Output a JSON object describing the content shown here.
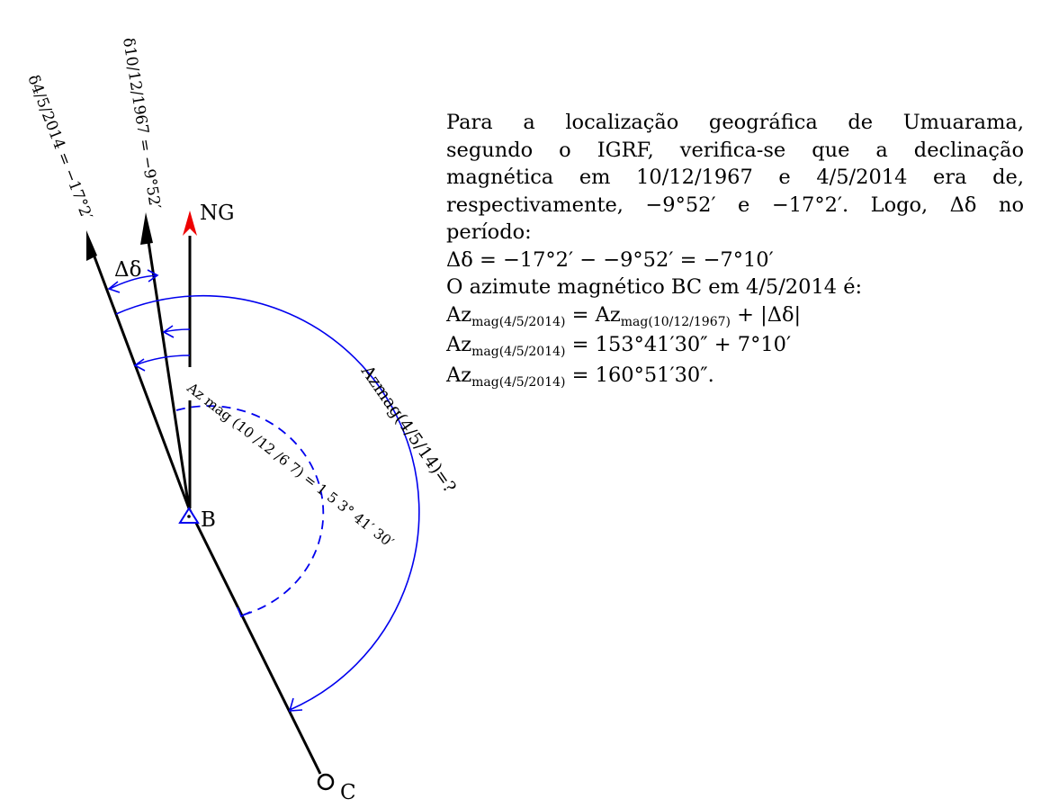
{
  "diagram": {
    "labels": {
      "ng": "NG",
      "b": "B",
      "c": "C",
      "delta": "Δδ",
      "decl_2014": "δ4/5/2014 = −17°2′",
      "decl_1967": "δ10/12/1967 = −9°52′",
      "az_1967": "Az mag (10 /12 /6 7) = 1 5 3° 41′ 30′",
      "az_2014": "Azmag(4/5/14)=?"
    },
    "colors": {
      "arc": "#0000ee",
      "north_arrow": "#ee0000",
      "line": "#000000"
    }
  },
  "text": {
    "p1": "Para a localização geográfica de Umuarama,",
    "p2": "segundo o IGRF, verifica-se que a declinação",
    "p3": "magnética em 10/12/1967 e 4/5/2014 era de,",
    "p4": "respectivamente, −9°52′ e −17°2′. Logo, Δδ no",
    "p5": "período:",
    "eq1": "Δδ = −17°2′ − −9°52′ = −7°10′",
    "p6": "O azimute magnético BC em 4/5/2014 é:",
    "az_main": "Az",
    "sub_2014": "mag(4/5/2014)",
    "sub_1967": "mag(10/12/1967)",
    "eq2_rhs_end": "+ |Δδ|",
    "eq3_rhs": "= 153°41′30″ + 7°10′",
    "eq4_rhs": "= 160°51′30″."
  }
}
